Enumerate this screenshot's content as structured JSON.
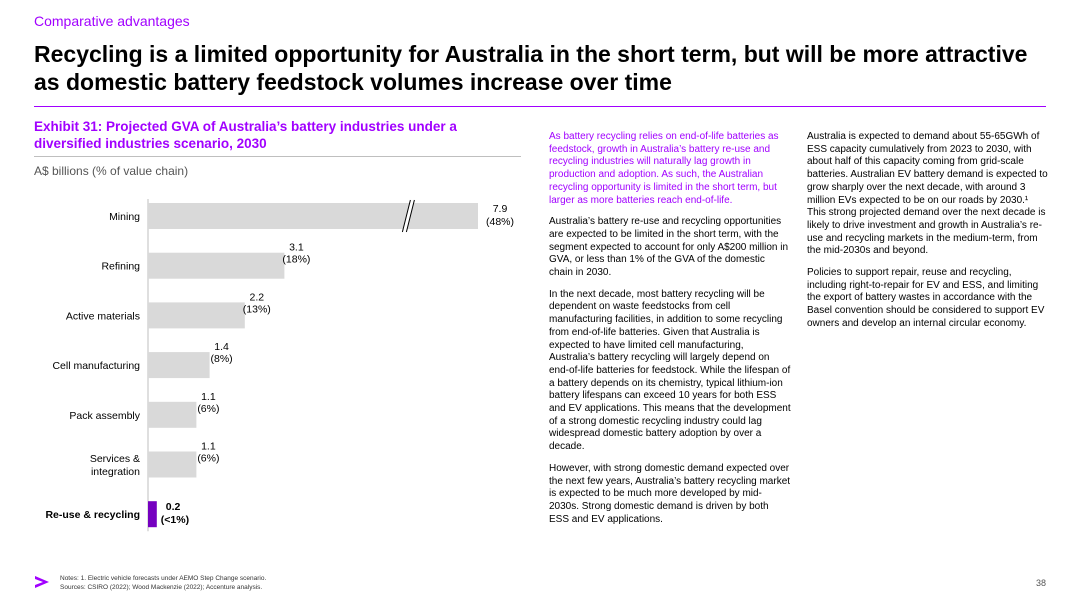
{
  "header": {
    "kicker": "Comparative advantages",
    "headline": "Recycling is a limited opportunity for Australia in the short term, but will be more attractive as domestic battery feedstock volumes increase over time"
  },
  "exhibit": {
    "title": "Exhibit 31: Projected GVA of Australia’s battery industries under a diversified industries scenario, 2030",
    "unit": "A$ billions (% of value chain)"
  },
  "chart_data": {
    "type": "bar",
    "orientation": "horizontal",
    "categories": [
      "Mining",
      "Refining",
      "Active materials",
      "Cell manufacturing",
      "Pack assembly",
      "Services & integration",
      "Re-use & recycling"
    ],
    "values": [
      7.9,
      3.1,
      2.2,
      1.4,
      1.1,
      1.1,
      0.2
    ],
    "value_labels": [
      "7.9",
      "3.1",
      "2.2",
      "1.4",
      "1.1",
      "1.1",
      "0.2"
    ],
    "share_labels": [
      "(48%)",
      "(18%)",
      "(13%)",
      "(8%)",
      "(6%)",
      "(6%)",
      "(<1%)"
    ],
    "highlight_index": 6,
    "axis_break_index": 0,
    "bar_color": "#d9d9d9",
    "highlight_color": "#7500c0",
    "title": "",
    "xlabel": "",
    "ylabel": "",
    "grid": false,
    "legend": "none"
  },
  "column1": {
    "intro": "As battery recycling relies on end-of-life batteries as feedstock, growth in Australia’s battery re-use and recycling industries will naturally lag growth in production and adoption. As such, the Australian recycling opportunity is limited in the short term, but larger as more batteries reach end-of-life.",
    "p1": "Australia’s battery re-use and recycling opportunities are expected to be limited in the short term, with the segment expected to account for only A$200 million in GVA, or less than 1% of the GVA of the domestic chain in 2030.",
    "p2": "In the next decade, most battery recycling will be dependent on waste feedstocks from cell manufacturing facilities, in addition to some recycling from end-of-life batteries. Given that Australia is expected to have limited cell manufacturing, Australia’s battery recycling will largely depend on end-of-life batteries for feedstock. While the lifespan of a battery depends on its chemistry, typical lithium-ion battery lifespans can exceed 10 years for both ESS and EV applications. This means that the development of a strong domestic recycling industry could lag widespread domestic battery adoption by over a decade.",
    "p3": "However, with strong domestic demand expected over the next few years, Australia’s battery recycling market is expected to be much more developed by mid-2030s. Strong domestic demand is driven by both ESS and EV applications."
  },
  "column2": {
    "p1": "Australia is expected to demand about 55-65GWh of ESS capacity cumulatively from 2023 to 2030, with about half of this capacity coming from grid-scale batteries. Australian EV battery demand is expected to grow sharply over the next decade, with around 3 million EVs expected to be on our roads by 2030.¹ This strong projected demand over the next decade is likely to drive investment and growth in Australia’s re-use and recycling markets in the medium-term, from the mid-2030s and beyond.",
    "p2": "Policies to support repair, reuse and recycling, including right-to-repair for EV and ESS, and limiting the export of battery wastes in accordance with the Basel convention should be considered to support EV owners and develop an internal circular economy."
  },
  "footer": {
    "notes": "Notes: 1. Electric vehicle forecasts under AEMO Step Change scenario.",
    "sources": "Sources: CSIRO (2022); Wood Mackenzie (2022); Accenture analysis.",
    "page_number": "38",
    "accent_color": "#a100ff"
  }
}
